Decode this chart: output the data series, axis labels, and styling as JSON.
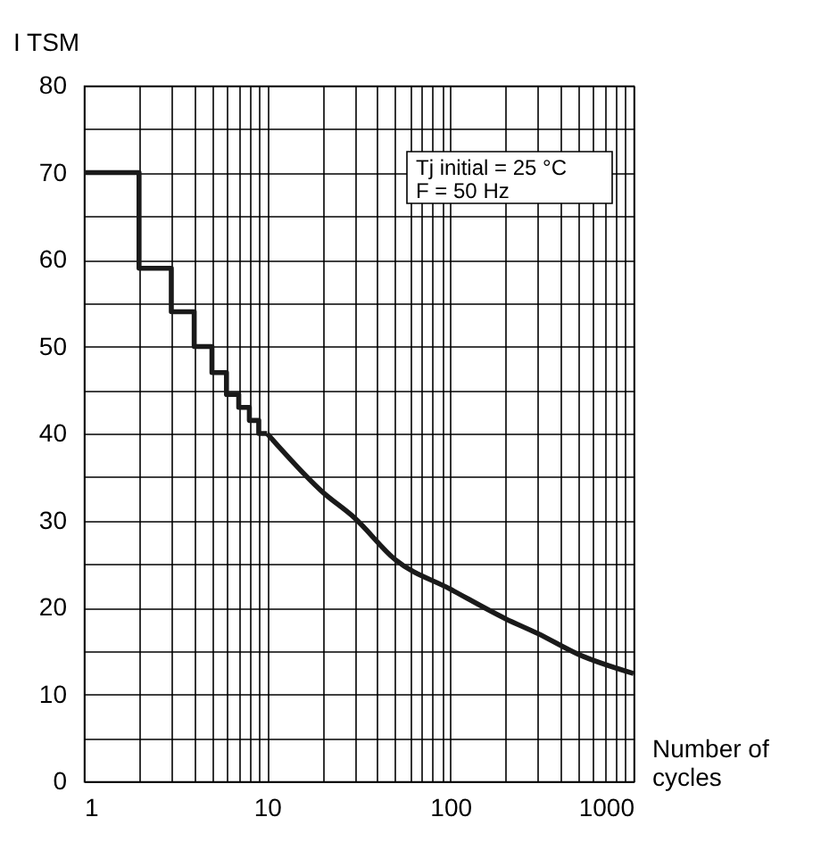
{
  "chart_data": {
    "type": "line",
    "ylabel": "I TSM",
    "xlabel": "Number of cycles",
    "log": "x",
    "grid": true,
    "marker": "none",
    "line_style": "solid",
    "xlim": [
      1,
      1000
    ],
    "ylim": [
      0,
      80
    ],
    "xticks": [
      1,
      {
        "value": 2,
        "label": null
      },
      {
        "value": 3,
        "label": null
      },
      {
        "value": 4,
        "label": null
      },
      {
        "value": 5,
        "label": null
      },
      {
        "value": 6,
        "label": null
      },
      {
        "value": 7,
        "label": null
      },
      {
        "value": 8,
        "label": null
      },
      {
        "value": 9,
        "label": null
      },
      10,
      {
        "value": 20,
        "label": null
      },
      {
        "value": 30,
        "label": null
      },
      {
        "value": 40,
        "label": null
      },
      {
        "value": 50,
        "label": null
      },
      {
        "value": 60,
        "label": null
      },
      {
        "value": 70,
        "label": null
      },
      {
        "value": 80,
        "label": null
      },
      {
        "value": 90,
        "label": null
      },
      100,
      {
        "value": 200,
        "label": null
      },
      {
        "value": 300,
        "label": null
      },
      {
        "value": 400,
        "label": null
      },
      {
        "value": 500,
        "label": null
      },
      {
        "value": 600,
        "label": null
      },
      {
        "value": 700,
        "label": null
      },
      {
        "value": 800,
        "label": null
      },
      {
        "value": 900,
        "label": null
      },
      1000
    ],
    "yticks": [
      0,
      {
        "value": 5,
        "label": null
      },
      10,
      {
        "value": 15,
        "label": null
      },
      20,
      {
        "value": 25,
        "label": null
      },
      30,
      {
        "value": 35,
        "label": null
      },
      40,
      {
        "value": 45,
        "label": null
      },
      50,
      {
        "value": 55,
        "label": null
      },
      60,
      {
        "value": 65,
        "label": null
      },
      70,
      {
        "value": 75,
        "label": null
      },
      80
    ],
    "annotations": [
      "Tj initial = 25 °C",
      "F =  50 Hz"
    ],
    "series": [
      {
        "type": "step",
        "color": "#1a1a1a",
        "x": [
          1,
          2,
          3,
          4,
          5,
          6,
          7,
          8,
          9,
          10
        ],
        "values": [
          70,
          59,
          54,
          50,
          47,
          44.5,
          43,
          41.5,
          40,
          40
        ]
      },
      {
        "type": "line",
        "color": "#1a1a1a",
        "x": [
          10,
          20,
          30,
          50,
          100,
          200,
          300,
          500,
          1000
        ],
        "values": [
          40,
          33.3,
          30.3,
          25.5,
          22.1,
          18.7,
          17,
          14.6,
          12.4
        ]
      }
    ]
  }
}
